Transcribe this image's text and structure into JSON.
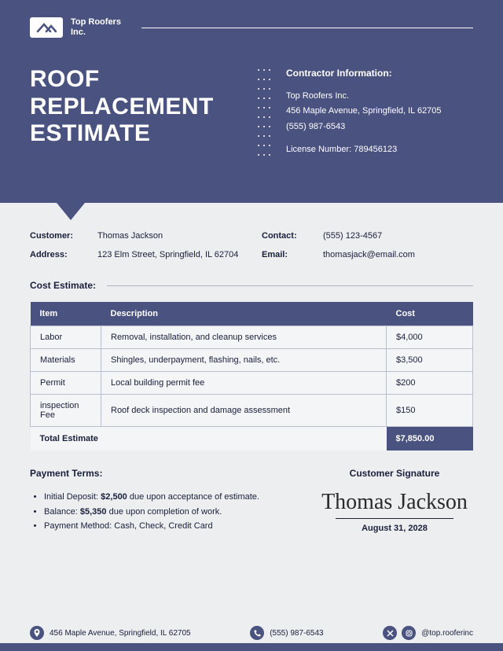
{
  "colors": {
    "primary": "#4a5280",
    "bg": "#eceef0",
    "text": "#1a1f3a",
    "border": "#b8bdd0",
    "cell_bg": "#f4f5f7"
  },
  "company": {
    "name_line1": "Top Roofers",
    "name_line2": "Inc."
  },
  "title": "ROOF REPLACEMENT ESTIMATE",
  "contractor": {
    "heading": "Contractor Information:",
    "name": "Top Roofers Inc.",
    "address": "456 Maple Avenue, Springfield, IL 62705",
    "phone": "(555) 987-6543",
    "license": "License Number: 789456123"
  },
  "customer": {
    "l_customer": "Customer:",
    "name": "Thomas Jackson",
    "l_contact": "Contact:",
    "contact": "(555) 123-4567",
    "l_address": "Address:",
    "address": "123 Elm Street, Springfield, IL 62704",
    "l_email": "Email:",
    "email": "thomasjack@email.com"
  },
  "cost_heading": "Cost Estimate:",
  "table": {
    "headers": [
      "Item",
      "Description",
      "Cost"
    ],
    "col_widths": [
      "90px",
      "auto",
      "110px"
    ],
    "rows": [
      [
        "Labor",
        "Removal, installation, and cleanup services",
        "$4,000"
      ],
      [
        "Materials",
        "Shingles, underpayment, flashing, nails, etc.",
        "$3,500"
      ],
      [
        "Permit",
        "Local building permit fee",
        "$200"
      ],
      [
        "inspection Fee",
        "Roof deck inspection and damage assessment",
        "$150"
      ]
    ],
    "total_label": "Total Estimate",
    "total_value": "$7,850.00"
  },
  "payment": {
    "heading": "Payment Terms:",
    "items": [
      "Initial Deposit: <b>$2,500</b> due upon acceptance of estimate.",
      "Balance: <b>$5,350</b> due upon completion of work.",
      "Payment Method: Cash, Check, Credit Card"
    ]
  },
  "signature": {
    "heading": "Customer Signature",
    "name": "Thomas Jackson",
    "date": "August 31, 2028"
  },
  "footer": {
    "address": "456 Maple Avenue, Springfield, IL 62705",
    "phone": "(555) 987-6543",
    "handle": "@top.rooferinc"
  }
}
